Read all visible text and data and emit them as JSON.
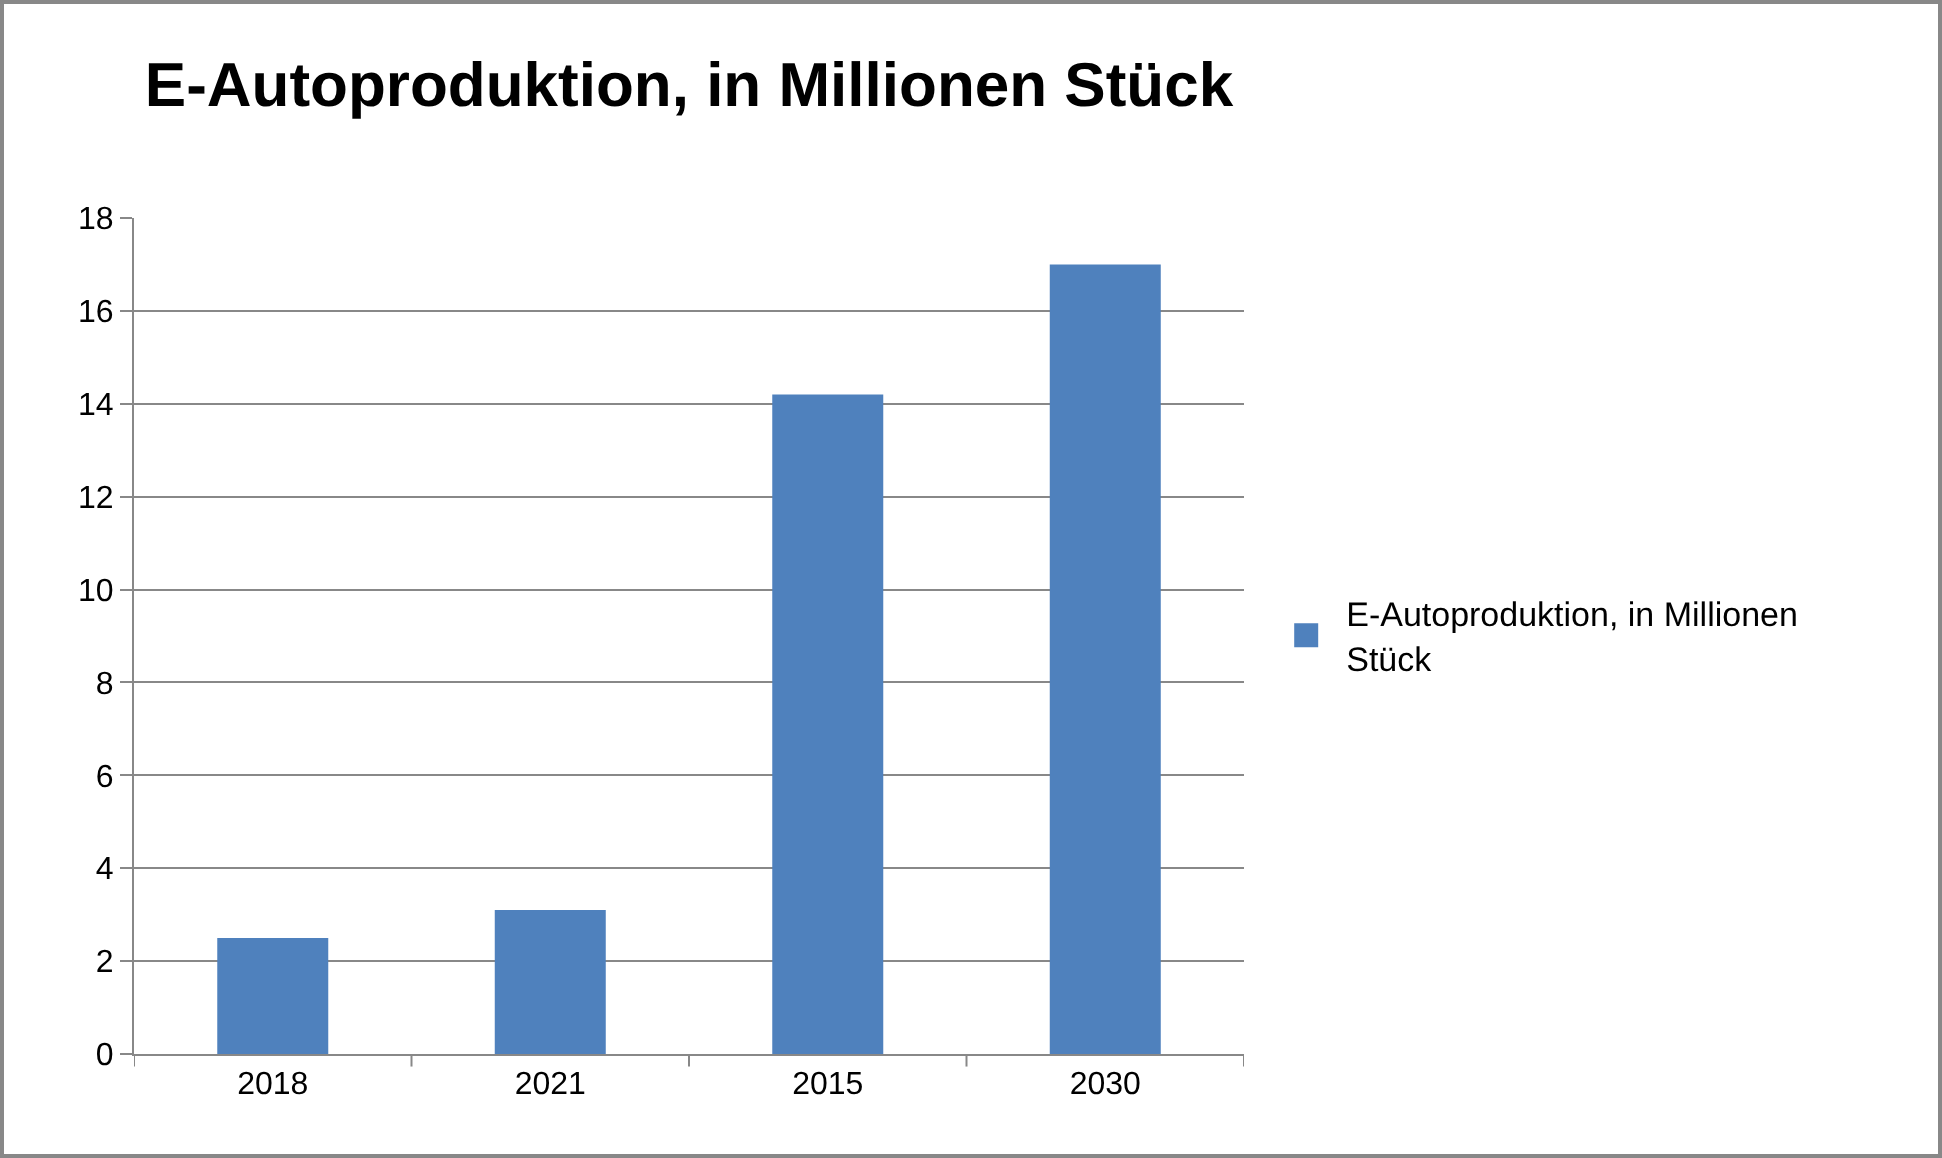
{
  "chart_data": {
    "type": "bar",
    "title": "E-Autoproduktion, in Millionen Stück",
    "categories": [
      "2018",
      "2021",
      "2015",
      "2030"
    ],
    "series": [
      {
        "name": "E-Autoproduktion, in Millionen Stück",
        "color": "#4f81bd",
        "values": [
          2.5,
          3.1,
          14.2,
          17
        ]
      }
    ],
    "ylim": [
      0,
      18
    ],
    "yticks": [
      0,
      2,
      4,
      6,
      8,
      10,
      12,
      14,
      16,
      18
    ],
    "grid": "y",
    "legend": "right"
  }
}
